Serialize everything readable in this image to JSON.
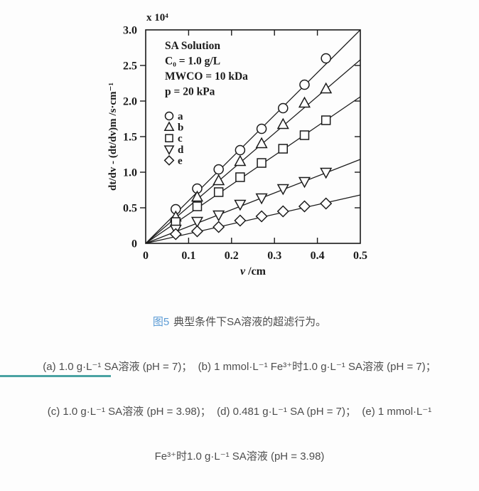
{
  "chart_data": {
    "type": "scatter",
    "title": "",
    "scale_label": "x 10⁴",
    "xlabel": "v /cm",
    "ylabel": "dt/dv - (dt/dv)m /s·cm⁻¹",
    "xlim": [
      0,
      0.5
    ],
    "ylim": [
      0,
      3.0
    ],
    "grid": false,
    "xtick_labels": [
      "0",
      "0.1",
      "0.2",
      "0.3",
      "0.4",
      "0.5"
    ],
    "ytick_labels": [
      "0",
      "0.5",
      "1.0",
      "1.5",
      "2.0",
      "2.5",
      "3.0"
    ],
    "annotations": [
      "SA Solution",
      "C₀ = 1.0 g/L",
      "MWCO = 10 kDa",
      "p = 20 kPa"
    ],
    "legend_position": "upper-left-inside",
    "ink_color": "#1a1a1a",
    "x": [
      0.07,
      0.12,
      0.17,
      0.22,
      0.27,
      0.32,
      0.37,
      0.42
    ],
    "series": [
      {
        "name": "a",
        "marker": "circle",
        "values": [
          0.48,
          0.77,
          1.04,
          1.31,
          1.61,
          1.9,
          2.23,
          2.6
        ],
        "fit_line_y_at_xmax": 3.0
      },
      {
        "name": "b",
        "marker": "triangle-up",
        "values": [
          0.37,
          0.65,
          0.88,
          1.15,
          1.4,
          1.67,
          1.97,
          2.17
        ],
        "fit_line_y_at_xmax": 2.58
      },
      {
        "name": "c",
        "marker": "square",
        "values": [
          0.3,
          0.52,
          0.72,
          0.93,
          1.13,
          1.33,
          1.52,
          1.73
        ],
        "fit_line_y_at_xmax": 2.06
      },
      {
        "name": "d",
        "marker": "triangle-down",
        "values": [
          0.2,
          0.31,
          0.4,
          0.55,
          0.64,
          0.77,
          0.87,
          1.0
        ],
        "fit_line_y_at_xmax": 1.18
      },
      {
        "name": "e",
        "marker": "diamond",
        "values": [
          0.13,
          0.17,
          0.23,
          0.32,
          0.38,
          0.45,
          0.52,
          0.56
        ],
        "fit_line_y_at_xmax": 0.68
      }
    ]
  },
  "caption": {
    "fig_label": "图5",
    "fig_title": "典型条件下SA溶液的超滤行为。",
    "line1": "(a) 1.0 g·L⁻¹ SA溶液 (pH = 7)；  (b) 1 mmol·L⁻¹ Fe³⁺时1.0 g·L⁻¹ SA溶液 (pH = 7)；",
    "line2": "(c) 1.0 g·L⁻¹ SA溶液 (pH = 3.98)；  (d) 0.481 g·L⁻¹ SA (pH = 7)；  (e) 1 mmol·L⁻¹",
    "line3": "Fe³⁺时1.0 g·L⁻¹ SA溶液 (pH = 3.98)",
    "accent_color": "#5b9bd5",
    "text_color": "#4d4d4d"
  },
  "footer": {
    "bar_color": "#4aa3a3"
  }
}
